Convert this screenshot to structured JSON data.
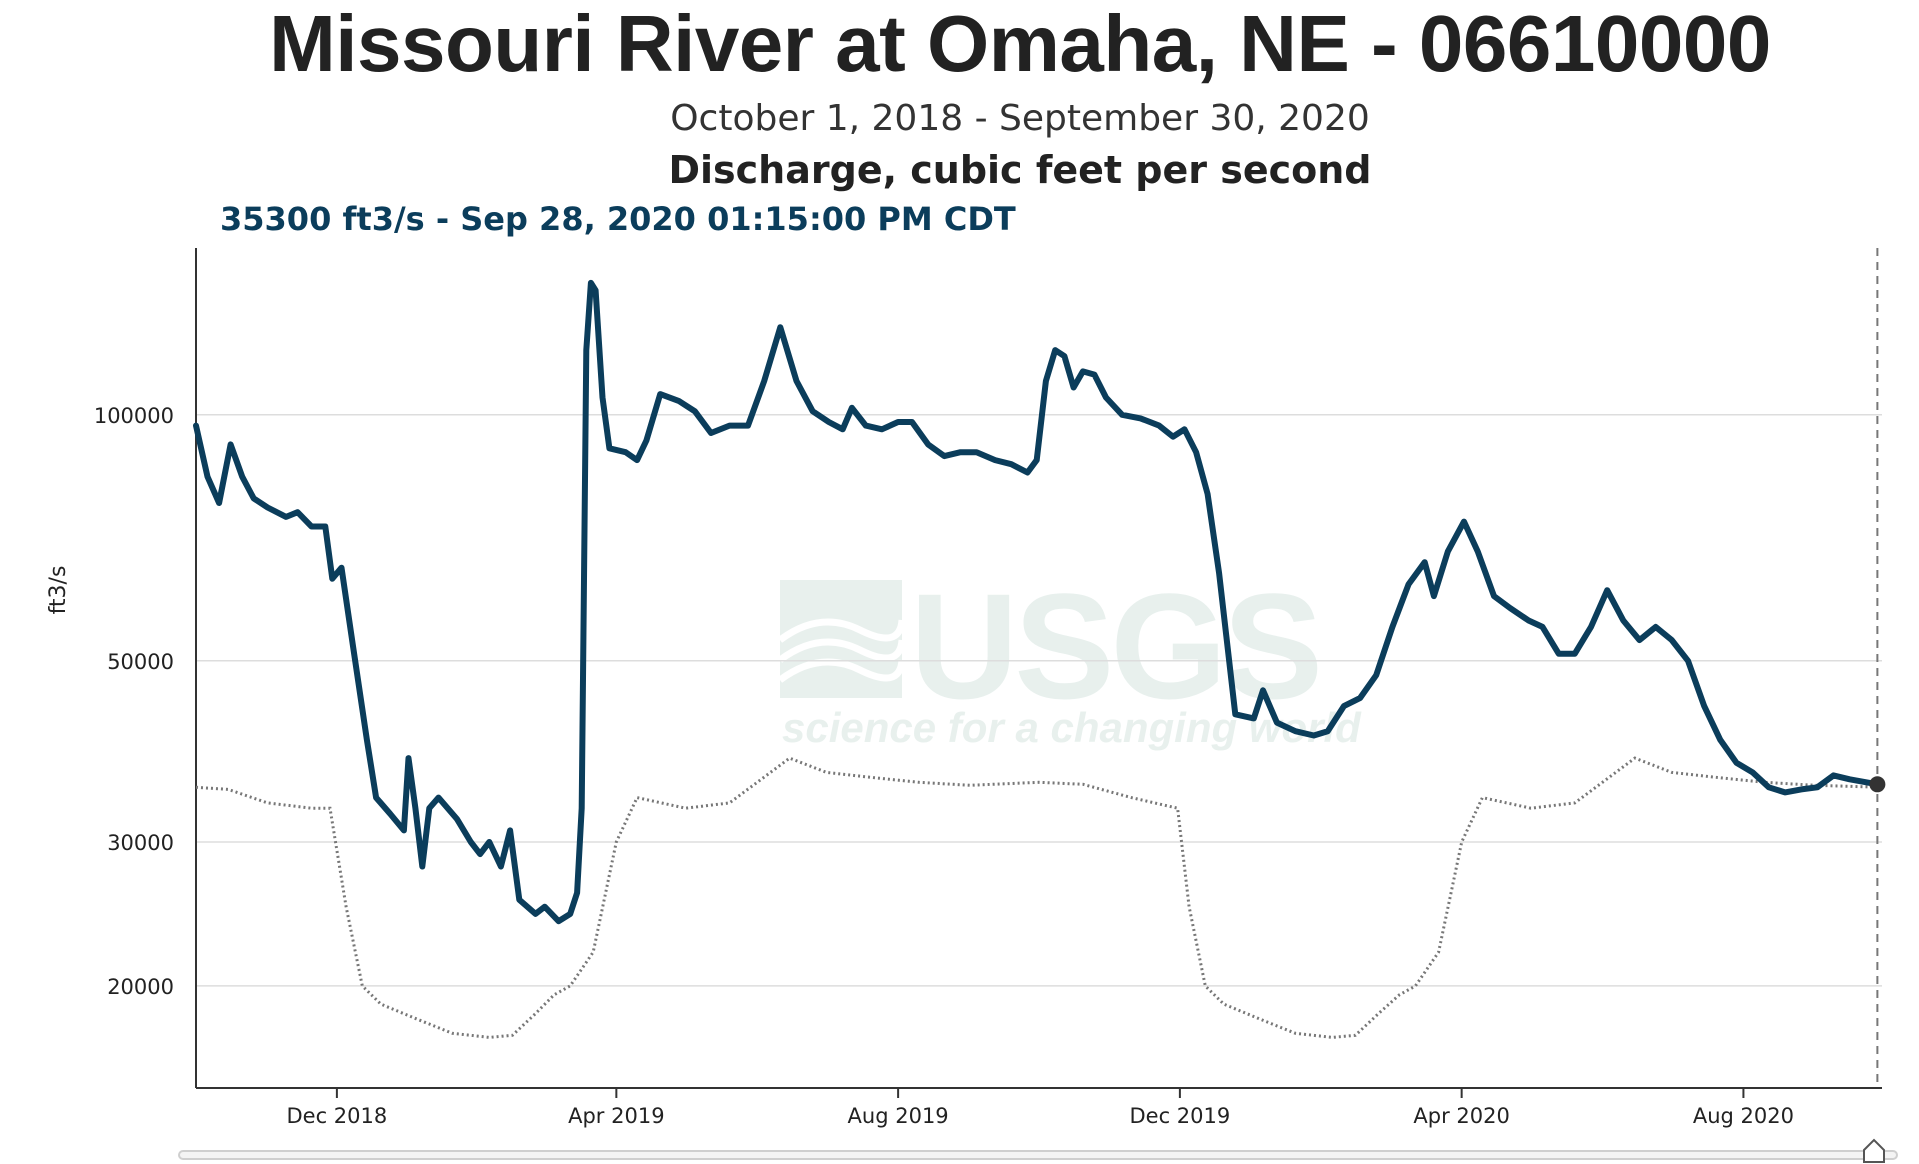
{
  "page": {
    "title": "Missouri River at Omaha, NE - 06610000",
    "subtitle": "October 1, 2018 - September 30, 2020",
    "parameter": "Discharge, cubic feet per second",
    "readout": "35300 ft3/s - Sep 28, 2020 01:15:00 PM CDT"
  },
  "watermark": {
    "text": "USGS",
    "tagline": "science for a changing world"
  },
  "colors": {
    "series": "#0b3d5b",
    "median": "#777777",
    "grid": "#dddddd",
    "axis": "#333333",
    "watermark": "#e6efec"
  },
  "chart_data": {
    "type": "line",
    "scale": "log",
    "ylabel": "ft3/s",
    "xlim": [
      "2018-10-01",
      "2020-09-30"
    ],
    "ylim": [
      15000,
      160000
    ],
    "grid": true,
    "yticks": [
      {
        "value": 20000,
        "label": "20000"
      },
      {
        "value": 30000,
        "label": "30000"
      },
      {
        "value": 50000,
        "label": "50000"
      },
      {
        "value": 100000,
        "label": "100000"
      }
    ],
    "xticks": [
      {
        "date": "2018-12-01",
        "label": "Dec 2018"
      },
      {
        "date": "2019-04-01",
        "label": "Apr 2019"
      },
      {
        "date": "2019-08-01",
        "label": "Aug 2019"
      },
      {
        "date": "2019-12-01",
        "label": "Dec 2019"
      },
      {
        "date": "2020-04-01",
        "label": "Apr 2020"
      },
      {
        "date": "2020-08-01",
        "label": "Aug 2020"
      }
    ],
    "current": {
      "date": "2020-09-28",
      "value": 35300
    },
    "series": [
      {
        "points": [
          [
            "2018-10-01",
            97000
          ],
          [
            "2018-10-06",
            84000
          ],
          [
            "2018-10-11",
            78000
          ],
          [
            "2018-10-16",
            92000
          ],
          [
            "2018-10-21",
            84000
          ],
          [
            "2018-10-26",
            79000
          ],
          [
            "2018-11-01",
            77000
          ],
          [
            "2018-11-09",
            75000
          ],
          [
            "2018-11-14",
            76000
          ],
          [
            "2018-11-20",
            73000
          ],
          [
            "2018-11-26",
            73000
          ],
          [
            "2018-11-29",
            63000
          ],
          [
            "2018-12-03",
            65000
          ],
          [
            "2018-12-08",
            52000
          ],
          [
            "2018-12-14",
            40000
          ],
          [
            "2018-12-18",
            34000
          ],
          [
            "2018-12-24",
            32500
          ],
          [
            "2018-12-30",
            31000
          ],
          [
            "2019-01-01",
            38000
          ],
          [
            "2019-01-04",
            33000
          ],
          [
            "2019-01-07",
            28000
          ],
          [
            "2019-01-10",
            33000
          ],
          [
            "2019-01-14",
            34000
          ],
          [
            "2019-01-22",
            32000
          ],
          [
            "2019-01-28",
            30000
          ],
          [
            "2019-02-01",
            29000
          ],
          [
            "2019-02-05",
            30000
          ],
          [
            "2019-02-10",
            28000
          ],
          [
            "2019-02-14",
            31000
          ],
          [
            "2019-02-18",
            25500
          ],
          [
            "2019-02-25",
            24500
          ],
          [
            "2019-03-01",
            25000
          ],
          [
            "2019-03-07",
            24000
          ],
          [
            "2019-03-12",
            24500
          ],
          [
            "2019-03-15",
            26000
          ],
          [
            "2019-03-17",
            33000
          ],
          [
            "2019-03-19",
            120000
          ],
          [
            "2019-03-21",
            145000
          ],
          [
            "2019-03-23",
            142000
          ],
          [
            "2019-03-26",
            105000
          ],
          [
            "2019-03-29",
            91000
          ],
          [
            "2019-04-05",
            90000
          ],
          [
            "2019-04-10",
            88000
          ],
          [
            "2019-04-14",
            93000
          ],
          [
            "2019-04-20",
            106000
          ],
          [
            "2019-04-28",
            104000
          ],
          [
            "2019-05-05",
            101000
          ],
          [
            "2019-05-12",
            95000
          ],
          [
            "2019-05-20",
            97000
          ],
          [
            "2019-05-28",
            97000
          ],
          [
            "2019-06-04",
            110000
          ],
          [
            "2019-06-11",
            128000
          ],
          [
            "2019-06-18",
            110000
          ],
          [
            "2019-06-25",
            101000
          ],
          [
            "2019-07-02",
            98000
          ],
          [
            "2019-07-08",
            96000
          ],
          [
            "2019-07-12",
            102000
          ],
          [
            "2019-07-18",
            97000
          ],
          [
            "2019-07-25",
            96000
          ],
          [
            "2019-08-01",
            98000
          ],
          [
            "2019-08-07",
            98000
          ],
          [
            "2019-08-14",
            92000
          ],
          [
            "2019-08-21",
            89000
          ],
          [
            "2019-08-28",
            90000
          ],
          [
            "2019-09-04",
            90000
          ],
          [
            "2019-09-12",
            88000
          ],
          [
            "2019-09-19",
            87000
          ],
          [
            "2019-09-26",
            85000
          ],
          [
            "2019-09-30",
            88000
          ],
          [
            "2019-10-04",
            110000
          ],
          [
            "2019-10-08",
            120000
          ],
          [
            "2019-10-12",
            118000
          ],
          [
            "2019-10-16",
            108000
          ],
          [
            "2019-10-20",
            113000
          ],
          [
            "2019-10-25",
            112000
          ],
          [
            "2019-10-30",
            105000
          ],
          [
            "2019-11-06",
            100000
          ],
          [
            "2019-11-14",
            99000
          ],
          [
            "2019-11-22",
            97000
          ],
          [
            "2019-11-28",
            94000
          ],
          [
            "2019-12-03",
            96000
          ],
          [
            "2019-12-08",
            90000
          ],
          [
            "2019-12-13",
            80000
          ],
          [
            "2019-12-18",
            64000
          ],
          [
            "2019-12-25",
            43000
          ],
          [
            "2020-01-02",
            42500
          ],
          [
            "2020-01-06",
            46000
          ],
          [
            "2020-01-12",
            42000
          ],
          [
            "2020-01-20",
            41000
          ],
          [
            "2020-01-28",
            40500
          ],
          [
            "2020-02-03",
            41000
          ],
          [
            "2020-02-10",
            44000
          ],
          [
            "2020-02-17",
            45000
          ],
          [
            "2020-02-24",
            48000
          ],
          [
            "2020-03-02",
            55000
          ],
          [
            "2020-03-09",
            62000
          ],
          [
            "2020-03-16",
            66000
          ],
          [
            "2020-03-20",
            60000
          ],
          [
            "2020-03-26",
            68000
          ],
          [
            "2020-04-02",
            74000
          ],
          [
            "2020-04-08",
            68000
          ],
          [
            "2020-04-15",
            60000
          ],
          [
            "2020-04-22",
            58000
          ],
          [
            "2020-04-30",
            56000
          ],
          [
            "2020-05-06",
            55000
          ],
          [
            "2020-05-13",
            51000
          ],
          [
            "2020-05-20",
            51000
          ],
          [
            "2020-05-27",
            55000
          ],
          [
            "2020-06-03",
            61000
          ],
          [
            "2020-06-10",
            56000
          ],
          [
            "2020-06-17",
            53000
          ],
          [
            "2020-06-24",
            55000
          ],
          [
            "2020-07-01",
            53000
          ],
          [
            "2020-07-08",
            50000
          ],
          [
            "2020-07-15",
            44000
          ],
          [
            "2020-07-22",
            40000
          ],
          [
            "2020-07-29",
            37500
          ],
          [
            "2020-08-05",
            36500
          ],
          [
            "2020-08-12",
            35000
          ],
          [
            "2020-08-19",
            34500
          ],
          [
            "2020-08-26",
            34800
          ],
          [
            "2020-09-02",
            35000
          ],
          [
            "2020-09-09",
            36200
          ],
          [
            "2020-09-16",
            35800
          ],
          [
            "2020-09-28",
            35300
          ]
        ]
      },
      {
        "points": [
          [
            "2018-10-01",
            35000
          ],
          [
            "2018-10-15",
            34800
          ],
          [
            "2018-11-01",
            33500
          ],
          [
            "2018-11-20",
            33000
          ],
          [
            "2018-11-28",
            33000
          ],
          [
            "2018-12-05",
            25000
          ],
          [
            "2018-12-12",
            20000
          ],
          [
            "2018-12-20",
            19000
          ],
          [
            "2019-01-05",
            18200
          ],
          [
            "2019-01-20",
            17500
          ],
          [
            "2019-02-05",
            17300
          ],
          [
            "2019-02-15",
            17400
          ],
          [
            "2019-02-25",
            18500
          ],
          [
            "2019-03-05",
            19500
          ],
          [
            "2019-03-12",
            20000
          ],
          [
            "2019-03-22",
            22000
          ],
          [
            "2019-04-01",
            30000
          ],
          [
            "2019-04-10",
            34000
          ],
          [
            "2019-05-01",
            33000
          ],
          [
            "2019-05-20",
            33500
          ],
          [
            "2019-06-01",
            35500
          ],
          [
            "2019-06-15",
            38000
          ],
          [
            "2019-07-01",
            36500
          ],
          [
            "2019-07-20",
            36000
          ],
          [
            "2019-08-10",
            35500
          ],
          [
            "2019-09-01",
            35200
          ],
          [
            "2019-10-01",
            35500
          ],
          [
            "2019-10-20",
            35300
          ],
          [
            "2019-11-10",
            34000
          ],
          [
            "2019-11-30",
            33000
          ],
          [
            "2019-12-05",
            25000
          ],
          [
            "2019-12-12",
            20000
          ],
          [
            "2019-12-20",
            19000
          ],
          [
            "2020-01-05",
            18200
          ],
          [
            "2020-01-20",
            17500
          ],
          [
            "2020-02-05",
            17300
          ],
          [
            "2020-02-15",
            17400
          ],
          [
            "2020-02-25",
            18500
          ],
          [
            "2020-03-05",
            19500
          ],
          [
            "2020-03-12",
            20000
          ],
          [
            "2020-03-22",
            22000
          ],
          [
            "2020-04-01",
            30000
          ],
          [
            "2020-04-10",
            34000
          ],
          [
            "2020-05-01",
            33000
          ],
          [
            "2020-05-20",
            33500
          ],
          [
            "2020-06-01",
            35500
          ],
          [
            "2020-06-15",
            38000
          ],
          [
            "2020-07-01",
            36500
          ],
          [
            "2020-07-20",
            36000
          ],
          [
            "2020-08-10",
            35500
          ],
          [
            "2020-09-01",
            35200
          ],
          [
            "2020-09-30",
            35000
          ]
        ]
      }
    ]
  }
}
